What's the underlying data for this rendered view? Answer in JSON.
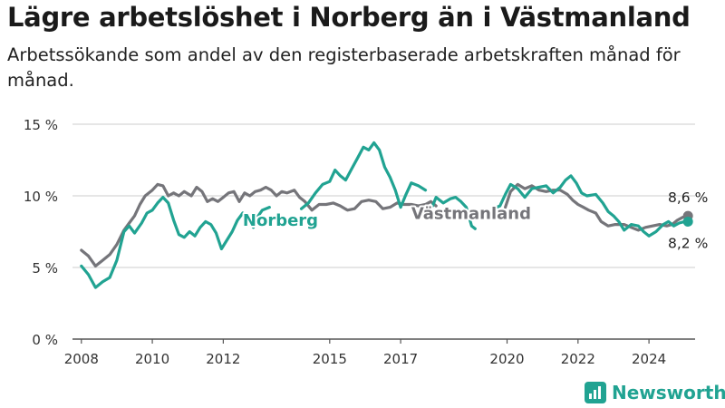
{
  "title": "Lägre arbetslöshet i Norberg än i Västmanland",
  "subtitle": "Arbetssökande som andel av den registerbaserade arbetskraften månad för månad.",
  "brand": {
    "name": "Newsworthy",
    "icon": "newsworthy-logo-icon"
  },
  "colors": {
    "norberg": "#21a392",
    "vastmanland": "#75757a",
    "grid": "#cccccc",
    "axis": "#555555"
  },
  "chart_data": {
    "type": "line",
    "xlabel": "",
    "ylabel": "",
    "xlim": [
      2007.75,
      2025.3
    ],
    "ylim": [
      0,
      15
    ],
    "x_ticks": [
      2008,
      2010,
      2012,
      2015,
      2017,
      2020,
      2022,
      2024
    ],
    "x_tick_labels": [
      "2008",
      "2010",
      "2012",
      "2015",
      "2017",
      "2020",
      "2022",
      "2024"
    ],
    "y_ticks": [
      0,
      5,
      10,
      15
    ],
    "y_tick_labels": [
      "0 %",
      "5 %",
      "10 %",
      "15 %"
    ],
    "grid": "horizontal",
    "series": [
      {
        "name": "Norberg",
        "key": "norberg",
        "end_label": "8,2 %",
        "points": [
          [
            [
              2008.0,
              5.1
            ],
            [
              2008.2,
              4.5
            ],
            [
              2008.4,
              3.6
            ],
            [
              2008.6,
              4.0
            ],
            [
              2008.8,
              4.3
            ],
            [
              2009.0,
              5.5
            ],
            [
              2009.2,
              7.5
            ],
            [
              2009.35,
              7.9
            ],
            [
              2009.5,
              7.4
            ],
            [
              2009.7,
              8.1
            ],
            [
              2009.85,
              8.8
            ],
            [
              2010.0,
              9.0
            ],
            [
              2010.15,
              9.5
            ],
            [
              2010.3,
              9.9
            ],
            [
              2010.45,
              9.5
            ],
            [
              2010.6,
              8.3
            ],
            [
              2010.75,
              7.3
            ],
            [
              2010.9,
              7.1
            ],
            [
              2011.05,
              7.5
            ],
            [
              2011.2,
              7.2
            ],
            [
              2011.35,
              7.8
            ],
            [
              2011.5,
              8.2
            ],
            [
              2011.65,
              8.0
            ],
            [
              2011.8,
              7.4
            ],
            [
              2011.95,
              6.3
            ],
            [
              2012.1,
              6.9
            ],
            [
              2012.25,
              7.5
            ],
            [
              2012.4,
              8.3
            ],
            [
              2012.55,
              8.8
            ],
            [
              2012.7,
              8.3
            ],
            [
              2012.85,
              7.8
            ]
          ],
          [
            [
              2012.9,
              8.3
            ],
            [
              2013.1,
              9.0
            ],
            [
              2013.3,
              9.2
            ]
          ],
          [
            [
              2014.2,
              9.1
            ],
            [
              2014.4,
              9.5
            ],
            [
              2014.6,
              10.2
            ],
            [
              2014.8,
              10.8
            ],
            [
              2015.0,
              11.0
            ],
            [
              2015.15,
              11.8
            ],
            [
              2015.3,
              11.4
            ],
            [
              2015.45,
              11.1
            ],
            [
              2015.6,
              11.8
            ],
            [
              2015.8,
              12.7
            ],
            [
              2015.95,
              13.4
            ],
            [
              2016.1,
              13.2
            ],
            [
              2016.25,
              13.7
            ],
            [
              2016.4,
              13.2
            ],
            [
              2016.55,
              12.0
            ],
            [
              2016.7,
              11.3
            ],
            [
              2016.85,
              10.4
            ],
            [
              2017.0,
              9.2
            ],
            [
              2017.15,
              10.1
            ],
            [
              2017.3,
              10.9
            ],
            [
              2017.5,
              10.7
            ],
            [
              2017.7,
              10.4
            ]
          ],
          [
            [
              2017.9,
              9.3
            ],
            [
              2018.0,
              9.9
            ],
            [
              2018.2,
              9.5
            ],
            [
              2018.4,
              9.8
            ],
            [
              2018.55,
              9.9
            ],
            [
              2018.7,
              9.6
            ],
            [
              2018.85,
              9.2
            ],
            [
              2019.0,
              7.9
            ],
            [
              2019.1,
              7.7
            ]
          ],
          [
            [
              2019.6,
              9.1
            ],
            [
              2019.8,
              9.3
            ],
            [
              2019.95,
              10.1
            ],
            [
              2020.1,
              10.8
            ],
            [
              2020.3,
              10.5
            ],
            [
              2020.5,
              9.9
            ],
            [
              2020.7,
              10.5
            ],
            [
              2020.9,
              10.6
            ],
            [
              2021.1,
              10.7
            ],
            [
              2021.3,
              10.2
            ],
            [
              2021.5,
              10.6
            ],
            [
              2021.65,
              11.1
            ],
            [
              2021.8,
              11.4
            ],
            [
              2021.95,
              10.9
            ],
            [
              2022.1,
              10.2
            ],
            [
              2022.25,
              10.0
            ],
            [
              2022.5,
              10.1
            ],
            [
              2022.7,
              9.5
            ],
            [
              2022.85,
              8.9
            ],
            [
              2023.0,
              8.6
            ],
            [
              2023.15,
              8.2
            ],
            [
              2023.3,
              7.6
            ],
            [
              2023.5,
              8.0
            ],
            [
              2023.7,
              7.9
            ],
            [
              2023.85,
              7.5
            ],
            [
              2024.0,
              7.2
            ],
            [
              2024.2,
              7.5
            ],
            [
              2024.4,
              8.0
            ],
            [
              2024.55,
              8.2
            ],
            [
              2024.7,
              7.9
            ],
            [
              2024.85,
              8.1
            ],
            [
              2025.0,
              8.2
            ],
            [
              2025.1,
              8.2
            ]
          ]
        ]
      },
      {
        "name": "Västmanland",
        "key": "vastmanland",
        "end_label": "8,6 %",
        "points": [
          [
            [
              2008.0,
              6.2
            ],
            [
              2008.2,
              5.8
            ],
            [
              2008.4,
              5.1
            ],
            [
              2008.6,
              5.5
            ],
            [
              2008.8,
              5.9
            ],
            [
              2009.0,
              6.6
            ],
            [
              2009.2,
              7.6
            ],
            [
              2009.35,
              8.1
            ],
            [
              2009.5,
              8.6
            ],
            [
              2009.65,
              9.4
            ],
            [
              2009.8,
              10.0
            ],
            [
              2010.0,
              10.4
            ],
            [
              2010.15,
              10.8
            ],
            [
              2010.3,
              10.7
            ],
            [
              2010.45,
              10.0
            ],
            [
              2010.6,
              10.2
            ],
            [
              2010.75,
              10.0
            ],
            [
              2010.9,
              10.3
            ],
            [
              2011.1,
              10.0
            ],
            [
              2011.25,
              10.6
            ],
            [
              2011.4,
              10.3
            ],
            [
              2011.55,
              9.6
            ],
            [
              2011.7,
              9.8
            ],
            [
              2011.85,
              9.6
            ],
            [
              2012.0,
              9.9
            ],
            [
              2012.15,
              10.2
            ],
            [
              2012.3,
              10.3
            ],
            [
              2012.45,
              9.6
            ],
            [
              2012.6,
              10.2
            ],
            [
              2012.75,
              10.0
            ],
            [
              2012.9,
              10.3
            ],
            [
              2013.05,
              10.4
            ],
            [
              2013.2,
              10.6
            ],
            [
              2013.35,
              10.4
            ],
            [
              2013.5,
              10.0
            ],
            [
              2013.65,
              10.3
            ],
            [
              2013.8,
              10.2
            ],
            [
              2014.0,
              10.4
            ],
            [
              2014.15,
              9.9
            ],
            [
              2014.3,
              9.6
            ],
            [
              2014.5,
              9.0
            ],
            [
              2014.7,
              9.4
            ],
            [
              2014.9,
              9.4
            ],
            [
              2015.1,
              9.5
            ],
            [
              2015.3,
              9.3
            ],
            [
              2015.5,
              9.0
            ],
            [
              2015.7,
              9.1
            ],
            [
              2015.9,
              9.6
            ],
            [
              2016.1,
              9.7
            ],
            [
              2016.3,
              9.6
            ],
            [
              2016.5,
              9.1
            ],
            [
              2016.7,
              9.2
            ],
            [
              2016.9,
              9.5
            ],
            [
              2017.1,
              9.4
            ],
            [
              2017.3,
              9.4
            ],
            [
              2017.5,
              9.3
            ],
            [
              2017.7,
              9.4
            ],
            [
              2017.85,
              9.6
            ],
            [
              2018.0,
              9.3
            ]
          ],
          [
            [
              2019.95,
              9.2
            ],
            [
              2020.1,
              10.3
            ],
            [
              2020.3,
              10.8
            ],
            [
              2020.5,
              10.5
            ],
            [
              2020.7,
              10.7
            ],
            [
              2020.9,
              10.4
            ],
            [
              2021.1,
              10.3
            ],
            [
              2021.3,
              10.4
            ],
            [
              2021.5,
              10.4
            ],
            [
              2021.7,
              10.1
            ],
            [
              2021.85,
              9.7
            ],
            [
              2022.0,
              9.4
            ],
            [
              2022.15,
              9.2
            ],
            [
              2022.3,
              9.0
            ],
            [
              2022.5,
              8.8
            ],
            [
              2022.65,
              8.2
            ],
            [
              2022.85,
              7.9
            ],
            [
              2023.05,
              8.0
            ],
            [
              2023.3,
              8.0
            ],
            [
              2023.5,
              7.8
            ],
            [
              2023.7,
              7.6
            ],
            [
              2023.9,
              7.8
            ],
            [
              2024.1,
              7.9
            ],
            [
              2024.3,
              8.0
            ],
            [
              2024.5,
              7.9
            ],
            [
              2024.65,
              8.0
            ],
            [
              2024.8,
              8.3
            ],
            [
              2024.95,
              8.5
            ],
            [
              2025.1,
              8.6
            ]
          ]
        ]
      }
    ],
    "annotations": [
      {
        "text": "Norberg",
        "series": "norberg",
        "x": 2012.55,
        "y": 7.9
      },
      {
        "text": "Västmanland",
        "series": "vastmanland",
        "x": 2017.3,
        "y": 8.4
      }
    ]
  }
}
